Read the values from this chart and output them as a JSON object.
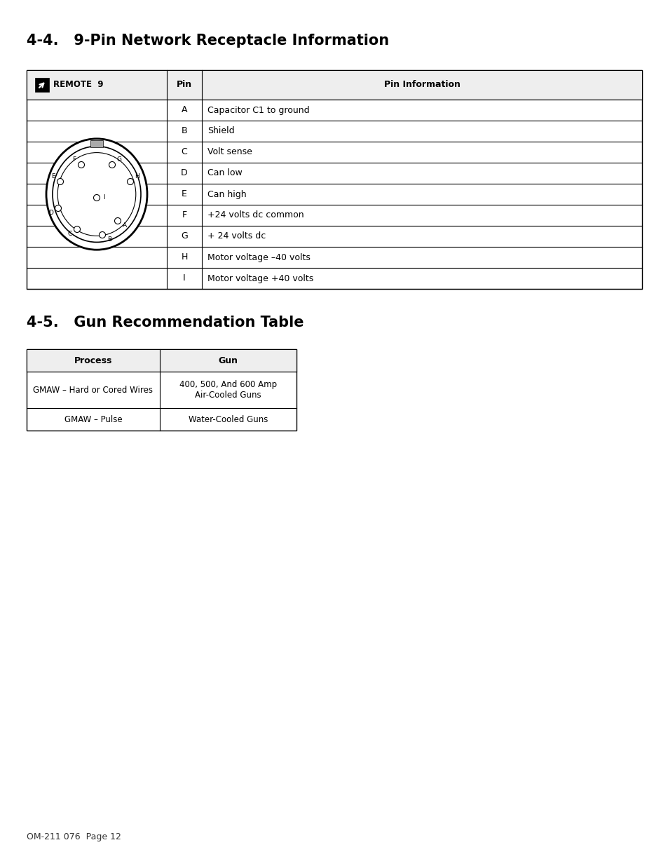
{
  "title1": "4-4.   9-Pin Network Receptacle Information",
  "title2": "4-5.   Gun Recommendation Table",
  "pin_rows": [
    [
      "A",
      "Capacitor C1 to ground"
    ],
    [
      "B",
      "Shield"
    ],
    [
      "C",
      "Volt sense"
    ],
    [
      "D",
      "Can low"
    ],
    [
      "E",
      "Can high"
    ],
    [
      "F",
      "+24 volts dc common"
    ],
    [
      "G",
      "+ 24 volts dc"
    ],
    [
      "H",
      "Motor voltage –40 volts"
    ],
    [
      "I",
      "Motor voltage +40 volts"
    ]
  ],
  "gun_table_headers": [
    "Process",
    "Gun"
  ],
  "gun_rows": [
    [
      "GMAW – Hard or Cored Wires",
      "400, 500, And 600 Amp\nAir-Cooled Guns"
    ],
    [
      "GMAW – Pulse",
      "Water-Cooled Guns"
    ]
  ],
  "footer": "OM-211 076  Page 12",
  "bg_color": "#ffffff"
}
